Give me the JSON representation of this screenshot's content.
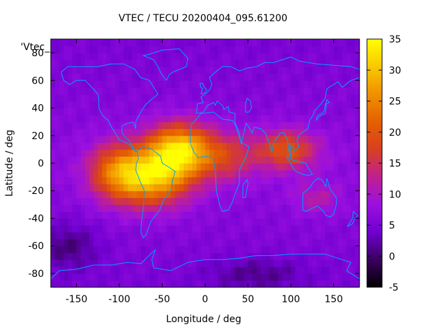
{
  "chart_data": {
    "type": "heatmap",
    "title": "VTEC / TECU 20200404_095.61200",
    "xlabel": "Longitude / deg",
    "ylabel": "Latitude / deg",
    "key_label": "'Vtec_",
    "xlim": [
      -180,
      180
    ],
    "ylim": [
      -90,
      90
    ],
    "x_ticks": [
      -150,
      -100,
      -50,
      0,
      50,
      100,
      150
    ],
    "y_ticks": [
      -80,
      -60,
      -40,
      -20,
      0,
      20,
      40,
      60,
      80
    ],
    "colorbar": {
      "range": [
        -5,
        35
      ],
      "ticks": [
        -5,
        0,
        5,
        10,
        15,
        20,
        25,
        30,
        35
      ],
      "palette": [
        "#000000",
        "#3a0060",
        "#7000d0",
        "#9a10e0",
        "#c02090",
        "#d84020",
        "#e46000",
        "#f09000",
        "#f8c800",
        "#ffff00"
      ]
    },
    "grid_resolution": {
      "lon_step": 5,
      "lat_step": 5
    },
    "background_level": 7,
    "enhancement_regions": [
      {
        "name": "",
        "lon": -65,
        "lat": -10,
        "peak": 30,
        "sigma_lon": 32,
        "sigma_lat": 14
      },
      {
        "name": "",
        "lon": -30,
        "lat": 10,
        "peak": 31,
        "sigma_lon": 26,
        "sigma_lat": 13
      },
      {
        "name": "",
        "lon": -105,
        "lat": -5,
        "peak": 18,
        "sigma_lon": 22,
        "sigma_lat": 14
      },
      {
        "name": "",
        "lon": 25,
        "lat": 5,
        "peak": 16,
        "sigma_lon": 25,
        "sigma_lat": 12
      },
      {
        "name": "",
        "lon": 95,
        "lat": 10,
        "peak": 20,
        "sigma_lon": 25,
        "sigma_lat": 10
      },
      {
        "name": "",
        "lon": 130,
        "lat": -25,
        "peak": 12,
        "sigma_lon": 20,
        "sigma_lat": 8
      }
    ],
    "depletion_regions": [
      {
        "name": "",
        "lon": -160,
        "lat": -60,
        "depth": 5,
        "sigma_lon": 25,
        "sigma_lat": 12
      },
      {
        "name": "",
        "lon": 60,
        "lat": -80,
        "depth": 4,
        "sigma_lon": 40,
        "sigma_lat": 8
      }
    ],
    "coastline_color": "#00a0ff"
  }
}
